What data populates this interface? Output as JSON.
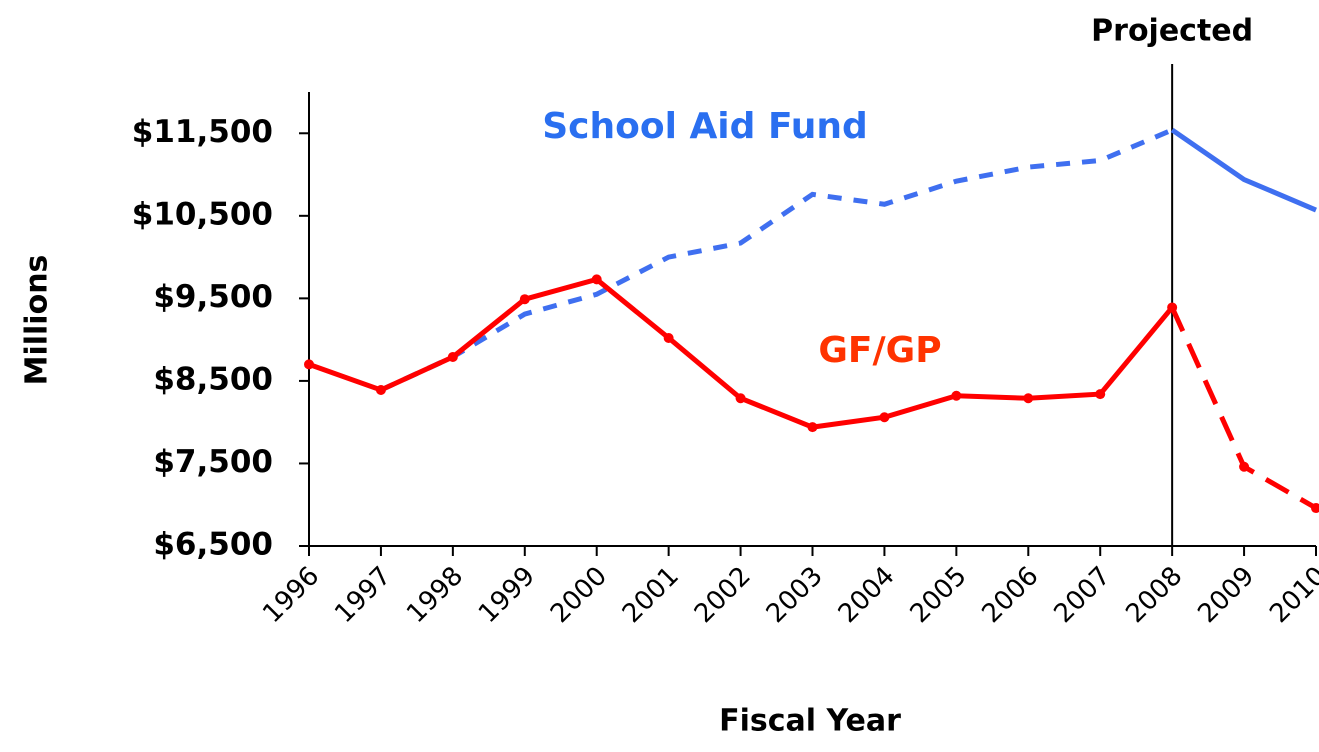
{
  "chart_data": {
    "type": "line",
    "x_label": "Fiscal Year",
    "y_label": "Millions",
    "annotation": "Projected",
    "projected_from": 2008,
    "x": [
      1996,
      1997,
      1998,
      1999,
      2000,
      2001,
      2002,
      2003,
      2004,
      2005,
      2006,
      2007,
      2008,
      2009,
      2010
    ],
    "xlim": [
      1996,
      2010
    ],
    "xticks": [
      1996,
      1997,
      1998,
      1999,
      2000,
      2001,
      2002,
      2003,
      2004,
      2005,
      2006,
      2007,
      2008,
      2009,
      2010
    ],
    "ylim": [
      6500,
      12000
    ],
    "yticks": [
      {
        "value": 6500,
        "label": "$6,500"
      },
      {
        "value": 7500,
        "label": "$7,500"
      },
      {
        "value": 8500,
        "label": "$8,500"
      },
      {
        "value": 9500,
        "label": "$9,500"
      },
      {
        "value": 10500,
        "label": "$10,500"
      },
      {
        "value": 11500,
        "label": "$11,500"
      }
    ],
    "series": [
      {
        "name": "School Aid Fund",
        "color": "#3f6ff0",
        "label_color": "#2a6ff0",
        "actual_dashed": true,
        "markers": false,
        "values": [
          null,
          8390,
          8790,
          9310,
          9550,
          10000,
          10170,
          10760,
          10640,
          10920,
          11090,
          11170,
          11540,
          10940,
          10570
        ]
      },
      {
        "name": "GF/GP",
        "color": "#ff0000",
        "label_color": "#ff3300",
        "actual_dashed": false,
        "markers": true,
        "values": [
          8700,
          8390,
          8790,
          9490,
          9730,
          9020,
          8290,
          7940,
          8060,
          8320,
          8290,
          8340,
          9390,
          7460,
          6960
        ]
      }
    ]
  }
}
